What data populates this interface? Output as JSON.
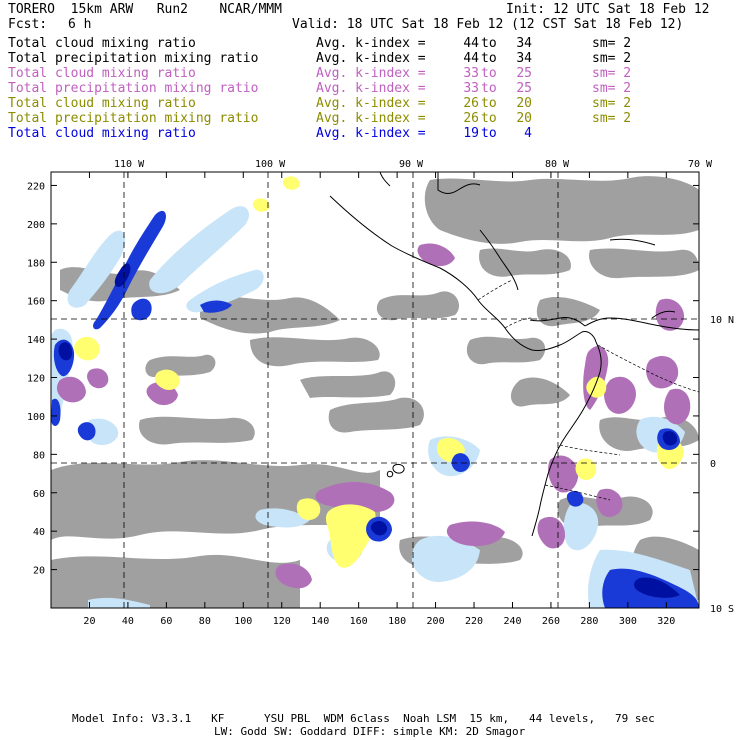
{
  "header": {
    "model": "TORERO  15km ARW   Run2    NCAR/MMM",
    "init": "Init: 12 UTC Sat 18 Feb 12",
    "fcst_label": "Fcst:",
    "fcst_value": "6 h",
    "valid": "Valid: 18 UTC Sat 18 Feb 12 (12 CST Sat 18 Feb 12)"
  },
  "legend": [
    {
      "variable": "Total cloud mixing ratio",
      "avg_label": "Avg. k-index =",
      "from": "44",
      "to_word": "to",
      "to": "34",
      "sm": "sm= 2",
      "color": "#000000"
    },
    {
      "variable": "Total precipitation mixing ratio",
      "avg_label": "Avg. k-index =",
      "from": "44",
      "to_word": "to",
      "to": "34",
      "sm": "sm= 2",
      "color": "#000000"
    },
    {
      "variable": "Total cloud mixing ratio",
      "avg_label": "Avg. k-index =",
      "from": "33",
      "to_word": "to",
      "to": "25",
      "sm": "sm= 2",
      "color": "#c060c0"
    },
    {
      "variable": "Total precipitation mixing ratio",
      "avg_label": "Avg. k-index =",
      "from": "33",
      "to_word": "to",
      "to": "25",
      "sm": "sm= 2",
      "color": "#c060c0"
    },
    {
      "variable": "Total cloud mixing ratio",
      "avg_label": "Avg. k-index =",
      "from": "26",
      "to_word": "to",
      "to": "20",
      "sm": "sm= 2",
      "color": "#8c8c00"
    },
    {
      "variable": "Total precipitation mixing ratio",
      "avg_label": "Avg. k-index =",
      "from": "26",
      "to_word": "to",
      "to": "20",
      "sm": "sm= 2",
      "color": "#8c8c00"
    },
    {
      "variable": "Total cloud mixing ratio",
      "avg_label": "Avg. k-index =",
      "from": "19",
      "to_word": "to",
      "to": "4",
      "sm": "",
      "color": "#0000e0"
    }
  ],
  "map": {
    "x_ticks": [
      "20",
      "40",
      "60",
      "80",
      "100",
      "120",
      "140",
      "160",
      "180",
      "200",
      "220",
      "240",
      "260",
      "280",
      "300",
      "320"
    ],
    "y_ticks": [
      "20",
      "40",
      "60",
      "80",
      "100",
      "120",
      "140",
      "160",
      "180",
      "200",
      "220"
    ],
    "longitude_labels": [
      "110 W",
      "100 W",
      "90 W",
      "80 W",
      "70 W"
    ],
    "latitude_labels": [
      "10 N",
      "0",
      "10 S"
    ],
    "colors": {
      "gray_cloud": "#a0a0a0",
      "purple": "#b070b8",
      "yellow": "#ffff70",
      "light_blue": "#c8e4f8",
      "blue": "#1a3ad8",
      "dark_blue": "#0010a0"
    }
  },
  "footer": {
    "line1": "Model Info: V3.3.1   KF      YSU PBL  WDM 6class  Noah LSM  15 km,   44 levels,   79 sec",
    "line2": "LW: Godd SW: Goddard DIFF: simple KM: 2D Smagor"
  }
}
